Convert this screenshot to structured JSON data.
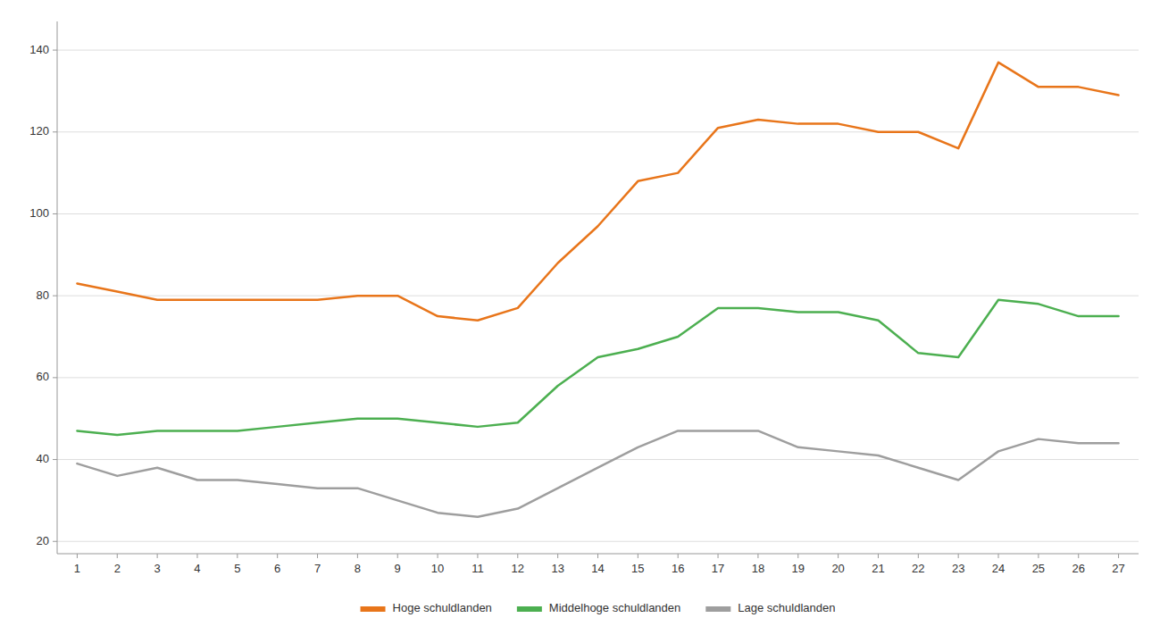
{
  "chart_data": {
    "type": "line",
    "x": [
      1,
      2,
      3,
      4,
      5,
      6,
      7,
      8,
      9,
      10,
      11,
      12,
      13,
      14,
      15,
      16,
      17,
      18,
      19,
      20,
      21,
      22,
      23,
      24,
      25,
      26,
      27
    ],
    "series": [
      {
        "name": "Hoge schuldlanden",
        "color": "#E8751A",
        "values": [
          83,
          81,
          79,
          79,
          79,
          79,
          79,
          80,
          80,
          75,
          74,
          77,
          88,
          97,
          108,
          110,
          121,
          123,
          122,
          122,
          120,
          120,
          116,
          137,
          131,
          131,
          129
        ]
      },
      {
        "name": "Middelhoge schuldlanden",
        "color": "#4CAF50",
        "values": [
          47,
          46,
          47,
          47,
          47,
          48,
          49,
          50,
          50,
          49,
          48,
          49,
          58,
          65,
          67,
          70,
          77,
          77,
          76,
          76,
          74,
          66,
          65,
          79,
          78,
          75,
          75
        ]
      },
      {
        "name": "Lage schuldlanden",
        "color": "#9E9E9E",
        "values": [
          39,
          36,
          38,
          35,
          35,
          34,
          33,
          33,
          30,
          27,
          26,
          28,
          33,
          38,
          43,
          47,
          47,
          47,
          43,
          42,
          41,
          38,
          35,
          42,
          45,
          44,
          44
        ]
      }
    ],
    "xlim": [
      0.5,
      27.5
    ],
    "xticks": [
      1,
      2,
      3,
      4,
      5,
      6,
      7,
      8,
      9,
      10,
      11,
      12,
      13,
      14,
      15,
      16,
      17,
      18,
      19,
      20,
      21,
      22,
      23,
      24,
      25,
      26,
      27
    ],
    "ylim": [
      17,
      147
    ],
    "yticks": [
      20,
      40,
      60,
      80,
      100,
      120,
      140
    ],
    "grid": true,
    "legend": "bottom"
  }
}
